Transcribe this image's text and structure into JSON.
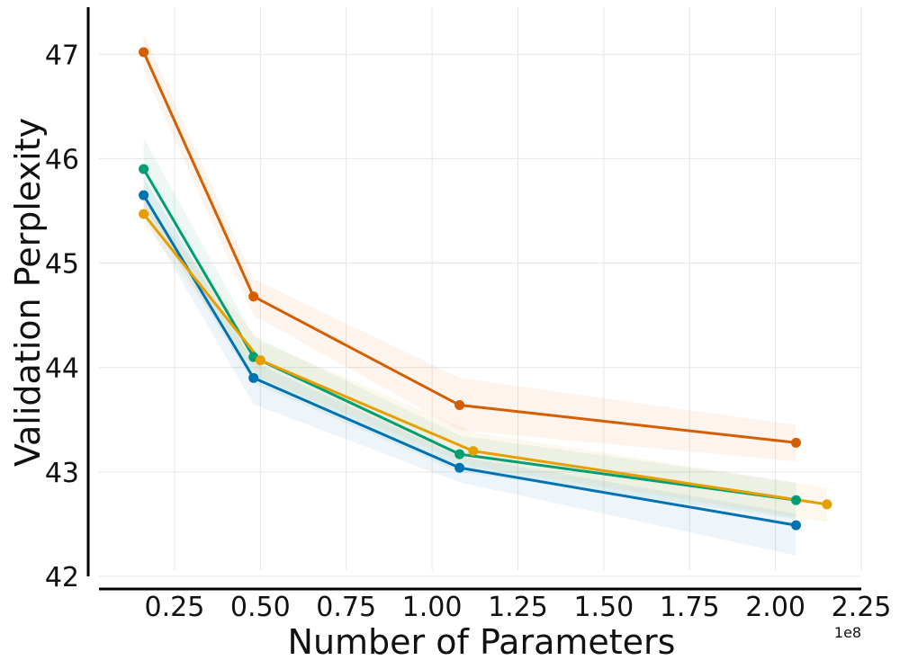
{
  "chart_data": {
    "type": "line",
    "title": "",
    "xlabel": "Number of Parameters",
    "ylabel": "Validation Perplexity",
    "x_offset_label": "1e8",
    "xlim": [
      0.03,
      2.25
    ],
    "ylim": [
      42,
      47.45
    ],
    "xticks": [
      0.25,
      0.5,
      0.75,
      1.0,
      1.25,
      1.5,
      1.75,
      2.0,
      2.25
    ],
    "xtick_labels": [
      "0.25",
      "0.50",
      "0.75",
      "1.00",
      "1.25",
      "1.50",
      "1.75",
      "2.00",
      "2.25"
    ],
    "yticks": [
      42,
      43,
      44,
      45,
      46,
      47
    ],
    "ytick_labels": [
      "42",
      "43",
      "44",
      "45",
      "46",
      "47"
    ],
    "grid": true,
    "legend": "none",
    "series": [
      {
        "color": "#0072b2",
        "x": [
          0.16,
          0.48,
          1.08,
          2.06
        ],
        "y": [
          45.65,
          43.9,
          43.04,
          42.49
        ],
        "band_lower": [
          45.45,
          43.65,
          42.9,
          42.2
        ],
        "band_upper": [
          45.82,
          44.05,
          43.15,
          42.6
        ]
      },
      {
        "color": "#009e73",
        "x": [
          0.16,
          0.48,
          1.08,
          2.06
        ],
        "y": [
          45.9,
          44.1,
          43.17,
          42.73
        ],
        "band_lower": [
          45.55,
          43.85,
          43.0,
          42.55
        ],
        "band_upper": [
          46.2,
          44.3,
          43.35,
          42.9
        ]
      },
      {
        "color": "#e69f00",
        "x": [
          0.16,
          0.5,
          1.12,
          2.15
        ],
        "y": [
          45.47,
          44.07,
          43.2,
          42.69
        ],
        "band_lower": [
          45.38,
          43.9,
          43.05,
          42.52
        ],
        "band_upper": [
          45.6,
          44.25,
          43.38,
          42.85
        ]
      },
      {
        "color": "#d55e00",
        "x": [
          0.16,
          0.48,
          1.08,
          2.06
        ],
        "y": [
          47.02,
          44.68,
          43.64,
          43.28
        ],
        "band_lower": [
          46.85,
          44.5,
          43.4,
          43.1
        ],
        "band_upper": [
          47.2,
          44.85,
          43.9,
          43.45
        ]
      }
    ]
  }
}
